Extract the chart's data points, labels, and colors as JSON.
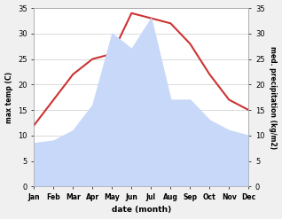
{
  "months": [
    "Jan",
    "Feb",
    "Mar",
    "Apr",
    "May",
    "Jun",
    "Jul",
    "Aug",
    "Sep",
    "Oct",
    "Nov",
    "Dec"
  ],
  "temperature": [
    12,
    17,
    22,
    25,
    26,
    34,
    33,
    32,
    28,
    22,
    17,
    15
  ],
  "precipitation": [
    8.5,
    9,
    11,
    16,
    30,
    27,
    33,
    17,
    17,
    13,
    11,
    10
  ],
  "temp_color": "#cc3333",
  "precip_fill_color": "#c8d8f8",
  "ylim_left": [
    0,
    35
  ],
  "ylim_right": [
    0,
    35
  ],
  "ylabel_left": "max temp (C)",
  "ylabel_right": "med. precipitation (kg/m2)",
  "xlabel": "date (month)",
  "background_color": "#f0f0f0",
  "plot_bg": "#ffffff",
  "fig_width": 3.18,
  "fig_height": 2.47,
  "dpi": 100
}
